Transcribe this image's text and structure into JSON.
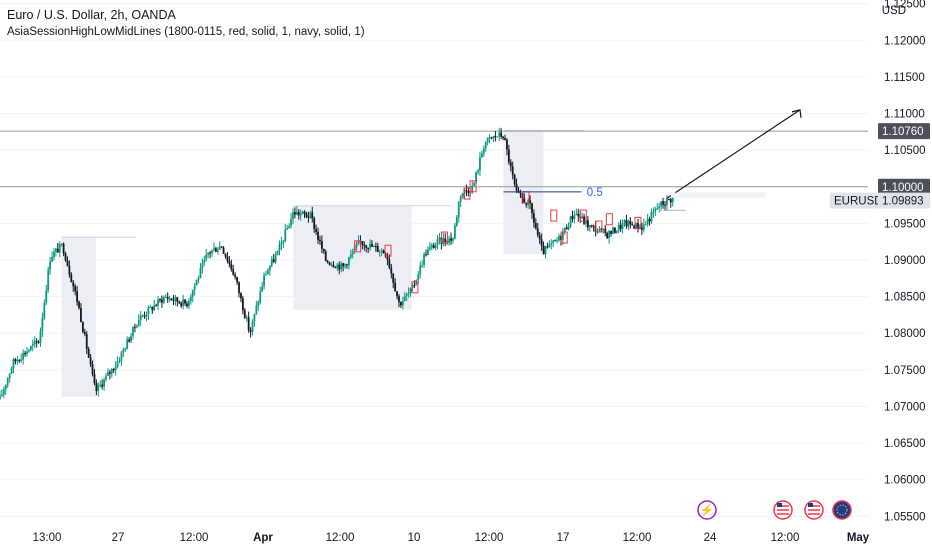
{
  "header": {
    "title": "Euro / U.S. Dollar, 2h, OANDA",
    "indicator": "AsiaSessionHighLowMidLines (1800-0115, red, solid, 1, navy, solid, 1)",
    "currency": "USD"
  },
  "chart_data": {
    "type": "candlestick",
    "symbol": "EURUSD",
    "y_axis": {
      "position": "right",
      "ylim": [
        1.0545,
        1.1255
      ],
      "tick_labels": [
        "1.05500",
        "1.06000",
        "1.06500",
        "1.07000",
        "1.07500",
        "1.08000",
        "1.08500",
        "1.09000",
        "1.09500",
        "1.10000",
        "1.10500",
        "1.11000",
        "1.11500",
        "1.12000",
        "1.12500"
      ]
    },
    "x_axis": {
      "tick_labels": [
        "13:00",
        "27",
        "12:00",
        "Apr",
        "12:00",
        "10",
        "12:00",
        "17",
        "12:00",
        "24",
        "12:00",
        "May"
      ]
    },
    "horizontal_lines": [
      {
        "price": 1.1076,
        "label": "1.10760",
        "color": "#9598a1"
      },
      {
        "price": 1.1,
        "label": "1.10000",
        "color": "#9598a1"
      }
    ],
    "last_price": {
      "label": "EURUSD",
      "value": "1.09893"
    },
    "fib_label": "0.5",
    "session_boxes": [
      {
        "x0": 0.071,
        "x1": 0.1105,
        "low": 1.0713,
        "high": 1.0931
      },
      {
        "x0": 0.338,
        "x1": 0.474,
        "low": 1.0832,
        "high": 1.0974
      },
      {
        "x0": 0.58,
        "x1": 0.626,
        "low": 1.0908,
        "high": 1.1077
      }
    ],
    "key_points": [
      [
        0.0,
        1.071
      ],
      [
        0.015,
        1.076
      ],
      [
        0.045,
        1.079
      ],
      [
        0.058,
        1.0905
      ],
      [
        0.072,
        1.092
      ],
      [
        0.09,
        1.084
      ],
      [
        0.11,
        1.072
      ],
      [
        0.135,
        1.076
      ],
      [
        0.16,
        1.082
      ],
      [
        0.19,
        1.085
      ],
      [
        0.215,
        1.084
      ],
      [
        0.24,
        1.091
      ],
      [
        0.255,
        1.092
      ],
      [
        0.27,
        1.088
      ],
      [
        0.288,
        1.08
      ],
      [
        0.305,
        1.088
      ],
      [
        0.32,
        1.091
      ],
      [
        0.338,
        1.0965
      ],
      [
        0.358,
        1.096
      ],
      [
        0.375,
        1.09
      ],
      [
        0.395,
        1.089
      ],
      [
        0.415,
        1.0925
      ],
      [
        0.445,
        1.091
      ],
      [
        0.46,
        1.084
      ],
      [
        0.475,
        1.086
      ],
      [
        0.49,
        1.091
      ],
      [
        0.505,
        1.0925
      ],
      [
        0.522,
        1.093
      ],
      [
        0.53,
        1.099
      ],
      [
        0.545,
        1.1
      ],
      [
        0.558,
        1.106
      ],
      [
        0.572,
        1.107
      ],
      [
        0.58,
        1.107
      ],
      [
        0.595,
        1.099
      ],
      [
        0.61,
        1.0975
      ],
      [
        0.625,
        1.091
      ],
      [
        0.645,
        1.093
      ],
      [
        0.662,
        1.0965
      ],
      [
        0.68,
        1.0945
      ],
      [
        0.7,
        1.0935
      ],
      [
        0.72,
        1.095
      ],
      [
        0.74,
        1.0945
      ],
      [
        0.76,
        1.0975
      ],
      [
        0.775,
        1.0985
      ]
    ]
  },
  "colors": {
    "up": "#089981",
    "down": "#131722",
    "session_box": "#eceef3",
    "line_gray": "#9598a1",
    "fib_blue": "#2962ff",
    "marker_red": "#f23645"
  }
}
